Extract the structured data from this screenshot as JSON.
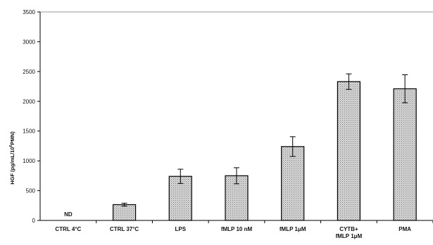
{
  "chart_data": {
    "type": "bar",
    "ylabel": "HGF (pg/mL/10",
    "ylabel_sup": "6",
    "ylabel_tail": "PMN)",
    "ylim": [
      0,
      3500
    ],
    "yticks": [
      0,
      500,
      1000,
      1500,
      2000,
      2500,
      3000,
      3500
    ],
    "grid": "top line only",
    "categories": [
      [
        "CTRL 4°C"
      ],
      [
        "CTRL 37°C"
      ],
      [
        "LPS"
      ],
      [
        "fMLP 10 nM"
      ],
      [
        "fMLP 1μM"
      ],
      [
        "CYTB+",
        "fMLP 1μM"
      ],
      [
        "PMA"
      ]
    ],
    "values": [
      null,
      265,
      740,
      750,
      1240,
      2330,
      2210
    ],
    "errors": [
      null,
      25,
      120,
      135,
      165,
      130,
      235
    ],
    "annotations": [
      {
        "category_index": 0,
        "text": "ND"
      }
    ],
    "bar_fill": "#c8c8c8",
    "bar_stroke": "#000000"
  }
}
